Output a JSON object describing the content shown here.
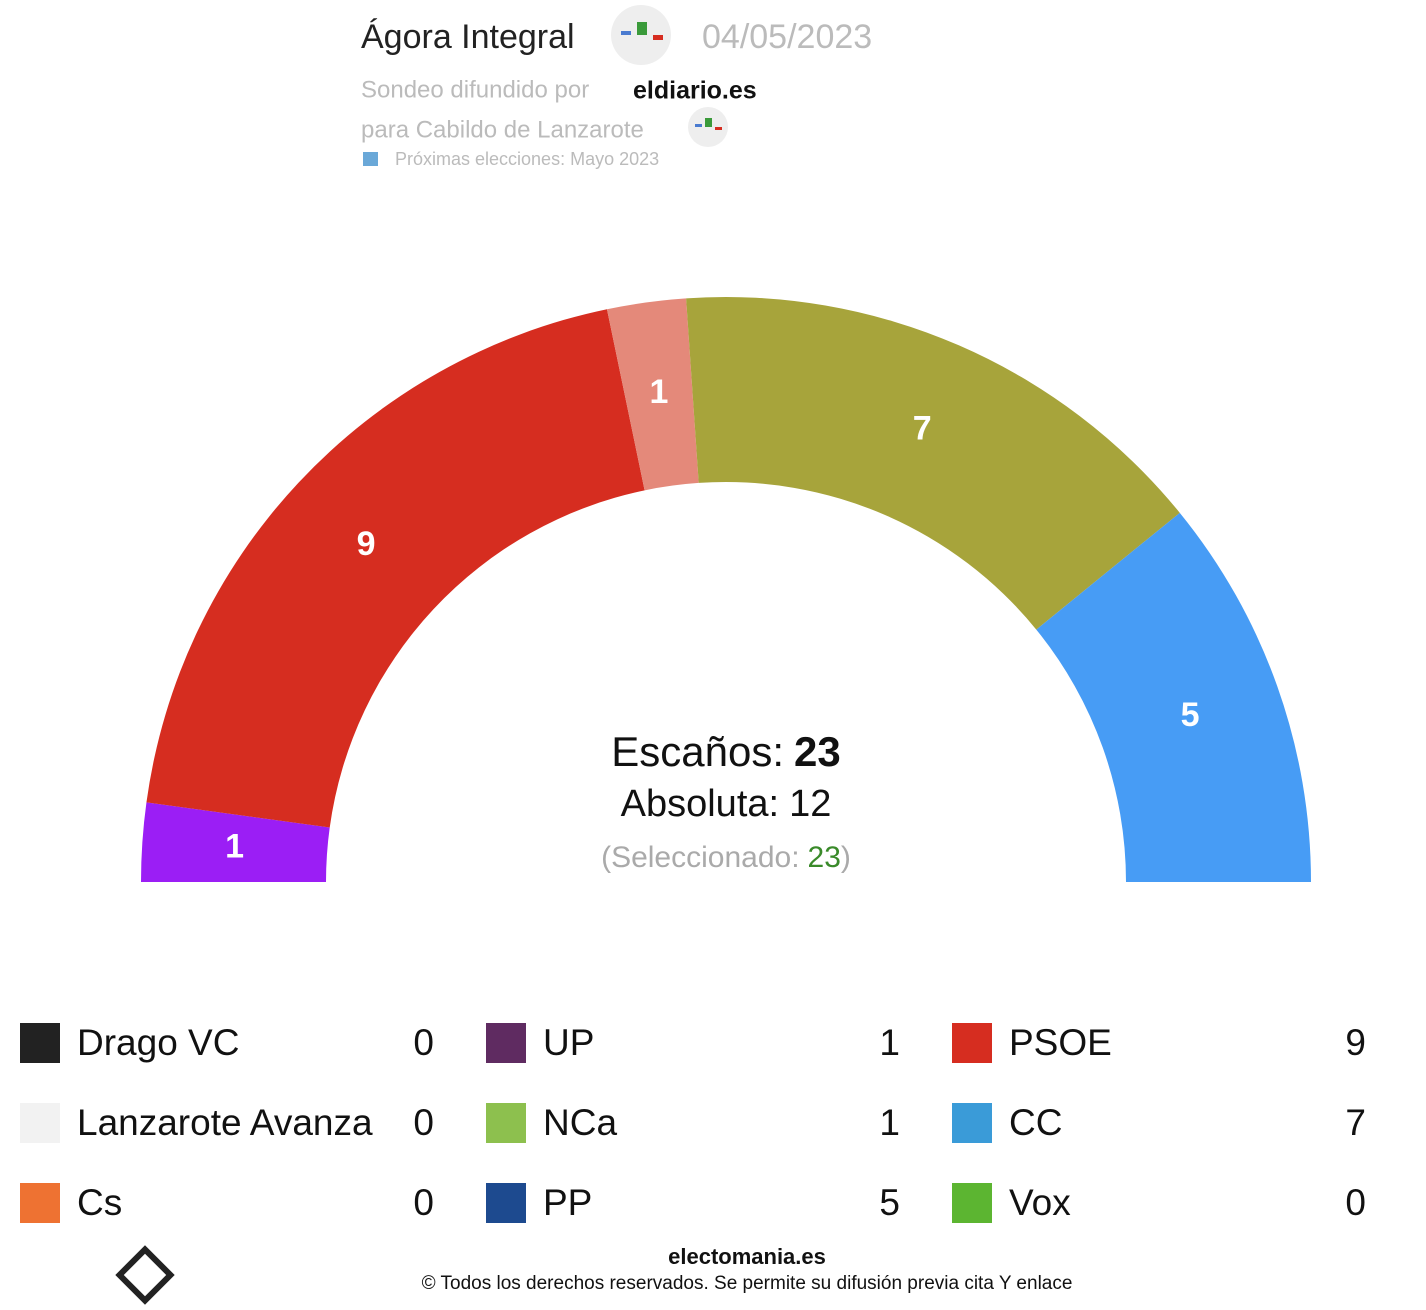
{
  "header": {
    "title": "Ágora Integral",
    "date": "04/05/2023",
    "spread_by": "Sondeo difundido por",
    "source": "eldiario.es",
    "scope": "para Cabildo de Lanzarote",
    "next": "Próximas elecciones: Mayo 2023"
  },
  "chart_data": {
    "type": "semicircle",
    "categories": [
      "UP",
      "PSOE",
      "NCa",
      "CC",
      "PP"
    ],
    "values": [
      1,
      9,
      1,
      7,
      5
    ],
    "colors": [
      "#9b1ef5",
      "#d62d20",
      "#e4897a",
      "#a7a43b",
      "#479cf5"
    ],
    "seats_label": "Escaños:",
    "seats": 23,
    "majority_label": "Absoluta:",
    "majority": 12,
    "selected_label": "(Seleccionado:",
    "selected": 23,
    "selected_close": ")"
  },
  "legend": [
    {
      "name": "Drago VC",
      "seats": 0,
      "color": "#222222"
    },
    {
      "name": "Lanzarote Avanza",
      "seats": 0,
      "color": "#f2f2f2"
    },
    {
      "name": "Cs",
      "seats": 0,
      "color": "#ee7232"
    },
    {
      "name": "UP",
      "seats": 1,
      "color": "#5f2b61"
    },
    {
      "name": "NCa",
      "seats": 1,
      "color": "#8dc04e"
    },
    {
      "name": "PP",
      "seats": 5,
      "color": "#1d4a8f"
    },
    {
      "name": "PSOE",
      "seats": 9,
      "color": "#d62d20"
    },
    {
      "name": "CC",
      "seats": 7,
      "color": "#3a9bd8"
    },
    {
      "name": "Vox",
      "seats": 0,
      "color": "#5cb531"
    }
  ],
  "footer": {
    "site": "electomania.es",
    "copyright": "© Todos los derechos reservados. Se permite su difusión previa cita Y enlace"
  }
}
